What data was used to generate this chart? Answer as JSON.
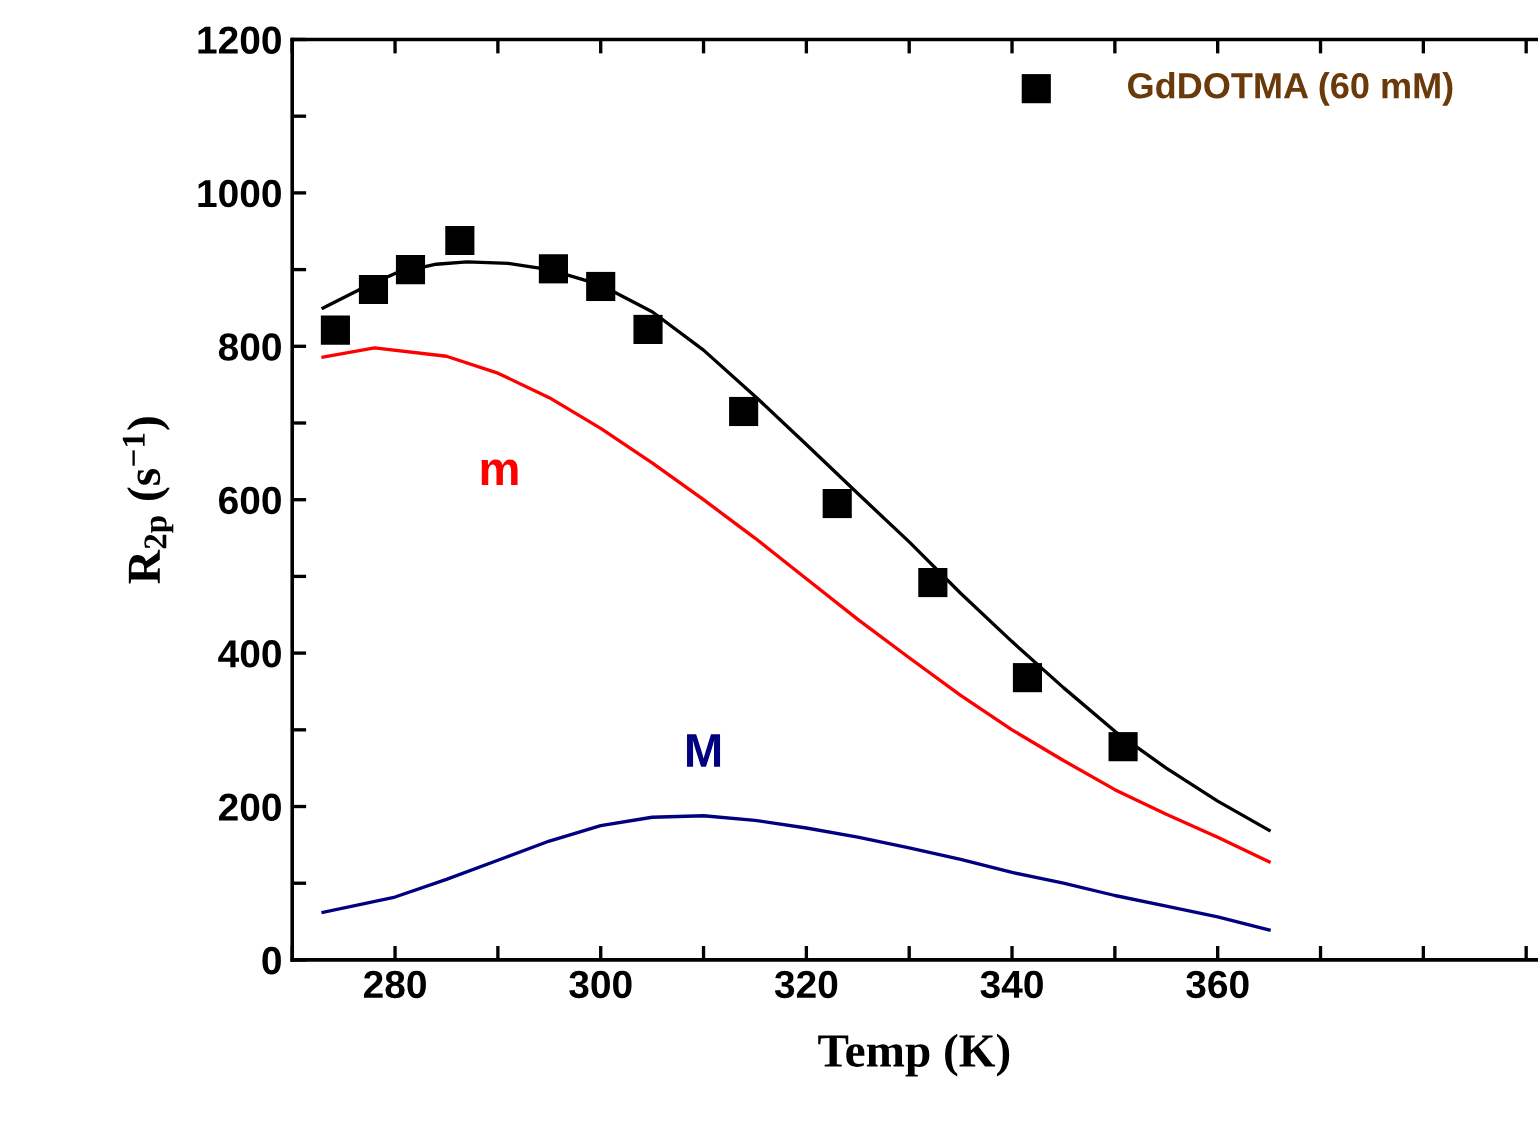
{
  "chart_data": {
    "type": "scatter",
    "xlabel": "Temp (K)",
    "ylabel": "R$_{2p}$ (s$^{−1}$)",
    "xlim": [
      270,
      391
    ],
    "ylim": [
      0,
      1200
    ],
    "xticks": [
      {
        "value": 270,
        "label": null
      },
      280,
      {
        "value": 290,
        "label": null
      },
      300,
      {
        "value": 310,
        "label": null
      },
      320,
      {
        "value": 330,
        "label": null
      },
      340,
      {
        "value": 350,
        "label": null
      },
      360,
      {
        "value": 370,
        "label": null
      },
      {
        "value": 380,
        "label": null
      },
      {
        "value": 390,
        "label": null
      }
    ],
    "yticks": [
      0,
      {
        "value": 100,
        "label": null
      },
      200,
      {
        "value": 300,
        "label": null
      },
      400,
      {
        "value": 500,
        "label": null
      },
      600,
      {
        "value": 700,
        "label": null
      },
      800,
      {
        "value": 900,
        "label": null
      },
      1000,
      {
        "value": 1100,
        "label": null
      },
      1200
    ],
    "legend": "top right",
    "grid": false,
    "series": [
      {
        "name": "GdDOTMA (60 mM)",
        "color": "#000000",
        "marker": "square",
        "x": [
          274.2,
          277.9,
          281.5,
          286.3,
          295.4,
          300.0,
          304.6,
          313.9,
          323.0,
          332.3,
          341.5,
          350.8
        ],
        "values": [
          821,
          874,
          900,
          938,
          901,
          878,
          822,
          715,
          595,
          492,
          368,
          278
        ]
      },
      {
        "type": "line",
        "color": "#000000",
        "x": [
          273,
          277,
          280,
          284,
          287,
          291,
          295,
          300,
          305,
          310,
          315,
          320,
          325,
          330,
          335,
          340,
          345,
          350,
          355,
          360,
          365
        ],
        "values": [
          850,
          877,
          895,
          907,
          910,
          908,
          900,
          880,
          845,
          795,
          735,
          672,
          608,
          545,
          478,
          415,
          355,
          298,
          250,
          207,
          169
        ]
      },
      {
        "type": "line",
        "name": "m",
        "color": "#ff0000",
        "x": [
          273,
          278,
          285,
          290,
          295,
          300,
          305,
          310,
          315,
          320,
          325,
          330,
          335,
          340,
          345,
          350,
          355,
          360,
          365
        ],
        "values": [
          786,
          798,
          787,
          765,
          733,
          693,
          648,
          600,
          550,
          497,
          444,
          394,
          345,
          300,
          260,
          222,
          190,
          160,
          128
        ]
      },
      {
        "type": "line",
        "name": "M",
        "color": "#000080",
        "x": [
          273,
          280,
          285,
          290,
          295,
          300,
          305,
          310,
          315,
          320,
          325,
          330,
          335,
          340,
          345,
          350,
          355,
          360,
          365
        ],
        "values": [
          62,
          82,
          105,
          130,
          155,
          175,
          186,
          188,
          182,
          172,
          160,
          146,
          131,
          114,
          100,
          84,
          70,
          56,
          39
        ]
      }
    ]
  }
}
